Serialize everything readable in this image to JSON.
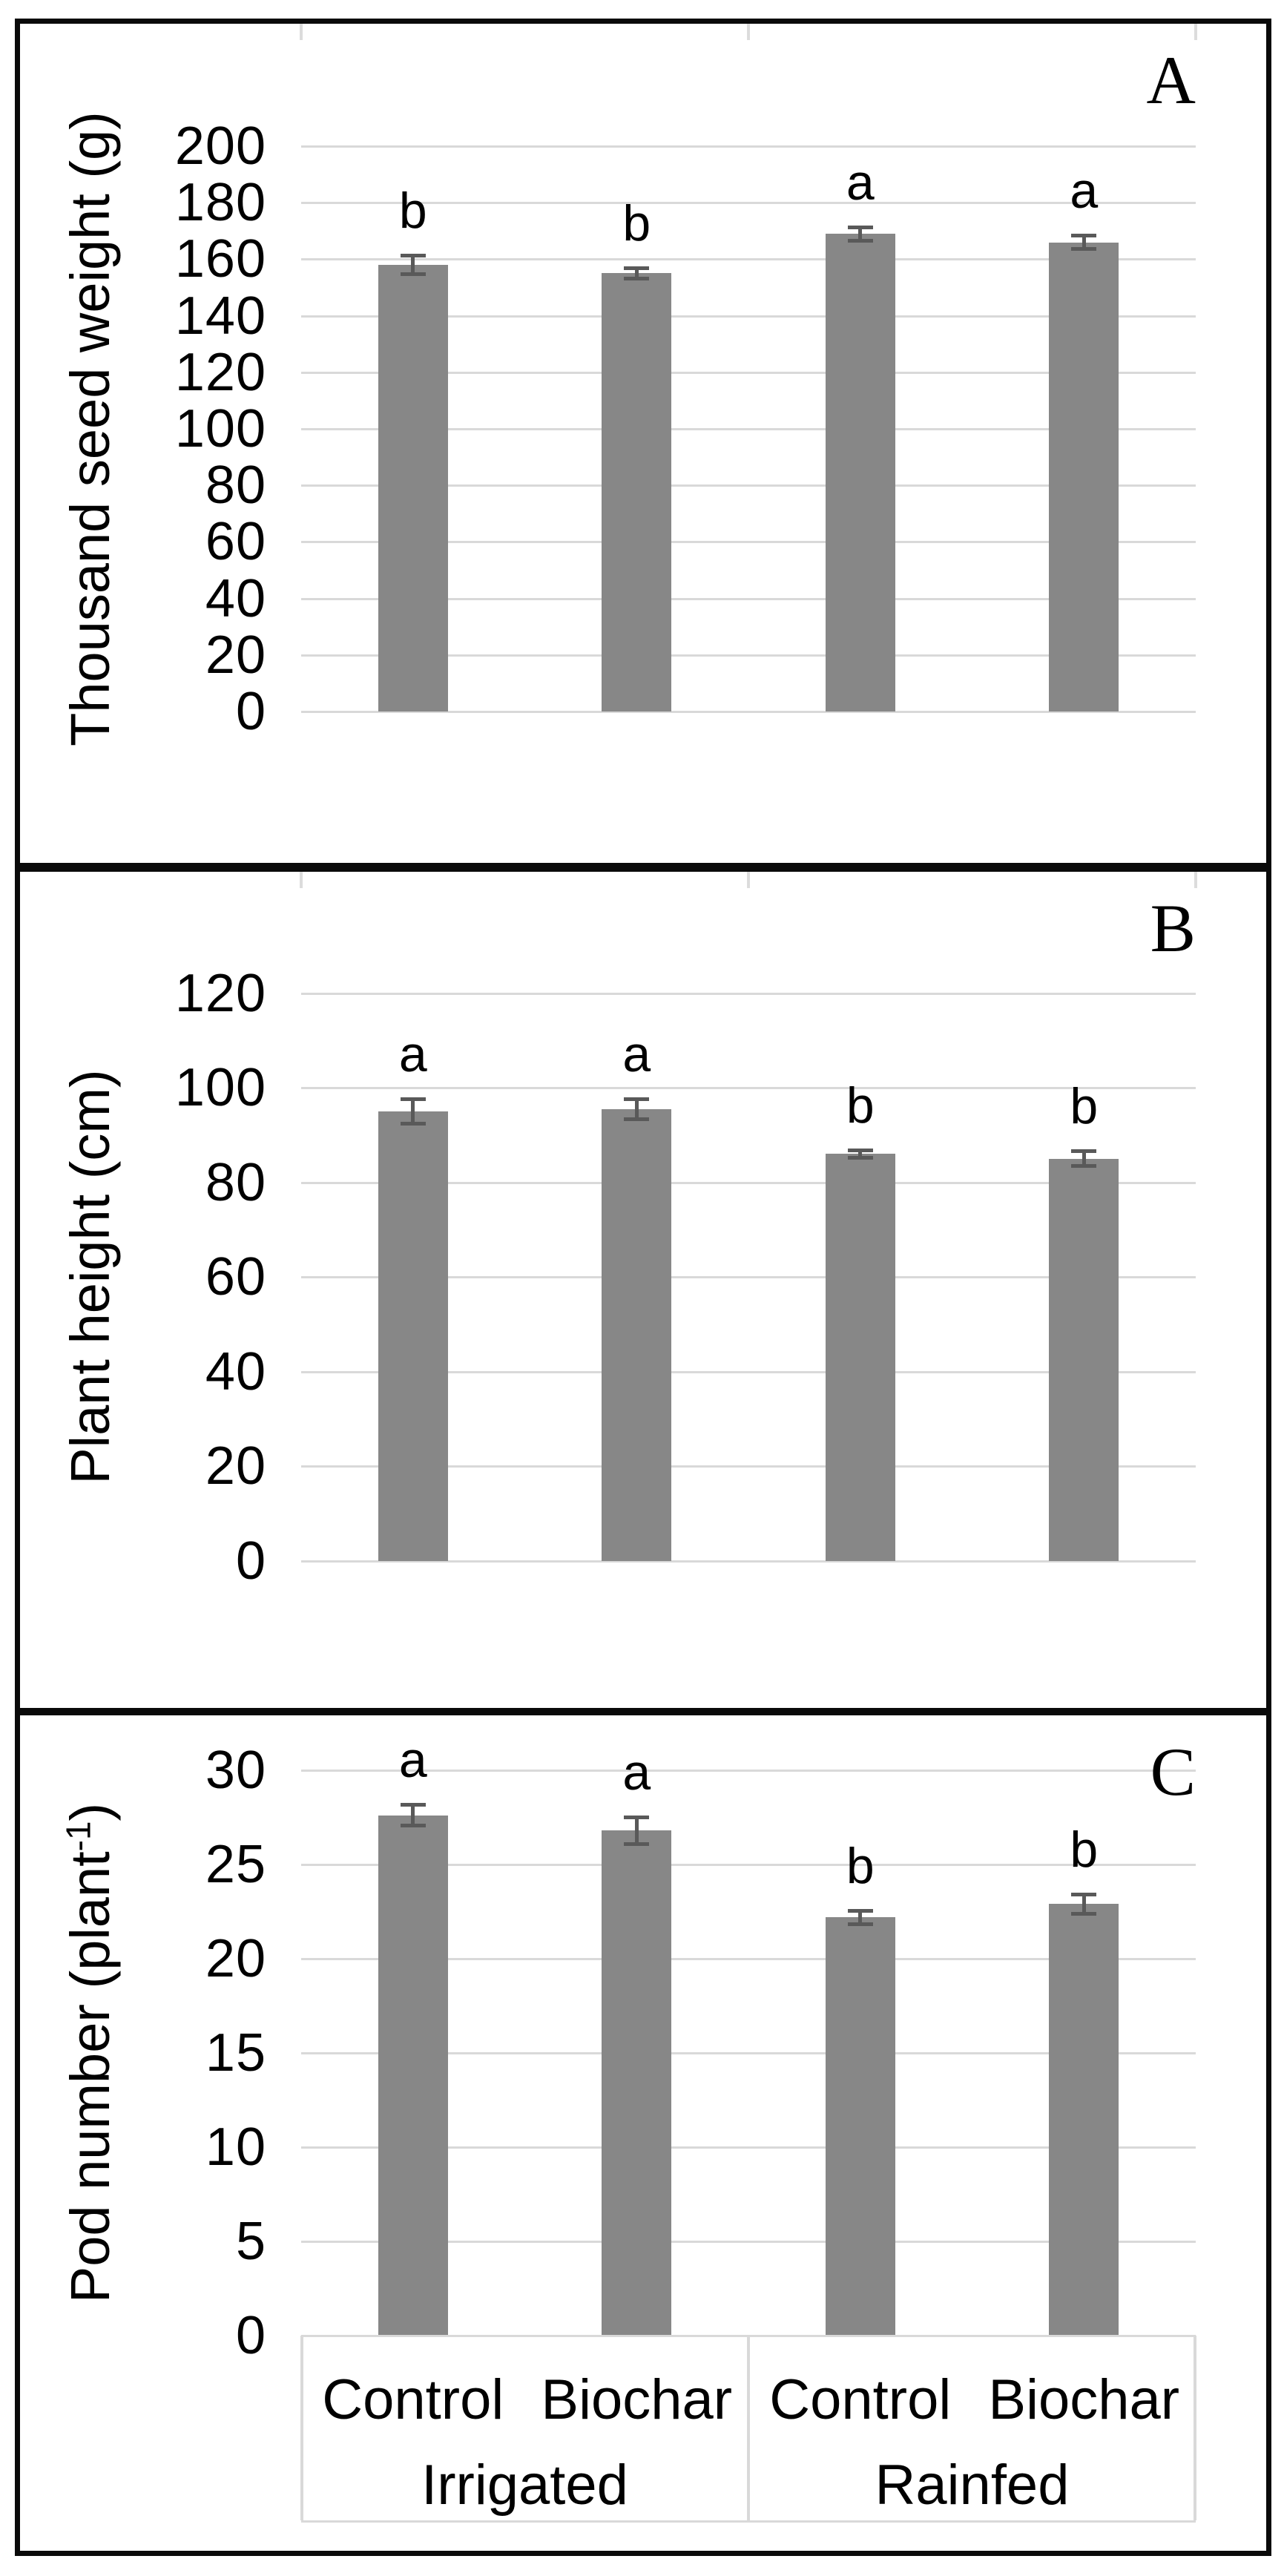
{
  "figure_title": "Three-panel bar chart figure",
  "colors": {
    "bar": "#878787",
    "error_bar": "#595959",
    "gridline": "#d9d9d9",
    "axis_box_line": "#d9d9d9",
    "top_tick": "#dcdcdc",
    "panel_border": "#0a0a0a",
    "background": "#ffffff",
    "text": "#000000"
  },
  "x_axis": {
    "treatments": [
      "Control",
      "Biochar",
      "Control",
      "Biochar"
    ],
    "groups": [
      {
        "label": "Irrigated",
        "span": [
          0,
          1
        ]
      },
      {
        "label": "Rainfed",
        "span": [
          2,
          3
        ]
      }
    ]
  },
  "chart_data": [
    {
      "type": "bar",
      "panel_label": "A",
      "ylabel": {
        "main": "Thousand seed weight (g)",
        "sup": "",
        "tail": ""
      },
      "categories": [
        "Irrigated Control",
        "Irrigated Biochar",
        "Rainfed Control",
        "Rainfed Biochar"
      ],
      "values": [
        158,
        155,
        169,
        166
      ],
      "errors": [
        4,
        2.5,
        3,
        3
      ],
      "sig_letters": [
        "b",
        "b",
        "a",
        "a"
      ],
      "ylim": [
        0,
        200
      ],
      "yticks": [
        0,
        20,
        40,
        60,
        80,
        100,
        120,
        140,
        160,
        180,
        200
      ],
      "grid": true,
      "legend": "none"
    },
    {
      "type": "bar",
      "panel_label": "B",
      "ylabel": {
        "main": "Plant height (cm)",
        "sup": "",
        "tail": ""
      },
      "categories": [
        "Irrigated Control",
        "Irrigated Biochar",
        "Rainfed Control",
        "Rainfed Biochar"
      ],
      "values": [
        95,
        95.5,
        86,
        85
      ],
      "errors": [
        3,
        2.5,
        1.2,
        2
      ],
      "sig_letters": [
        "a",
        "a",
        "b",
        "b"
      ],
      "ylim": [
        0,
        120
      ],
      "yticks": [
        0,
        20,
        40,
        60,
        80,
        100,
        120
      ],
      "grid": true,
      "legend": "none"
    },
    {
      "type": "bar",
      "panel_label": "C",
      "ylabel": {
        "main": "Pod number (plant",
        "sup": "-1",
        "tail": ")"
      },
      "categories": [
        "Irrigated Control",
        "Irrigated Biochar",
        "Rainfed Control",
        "Rainfed Biochar"
      ],
      "values": [
        27.6,
        26.8,
        22.2,
        22.9
      ],
      "errors": [
        0.65,
        0.8,
        0.45,
        0.6
      ],
      "sig_letters": [
        "a",
        "a",
        "b",
        "b"
      ],
      "ylim": [
        0,
        30
      ],
      "yticks": [
        0,
        5,
        10,
        15,
        20,
        25,
        30
      ],
      "grid": true,
      "legend": "none"
    }
  ]
}
